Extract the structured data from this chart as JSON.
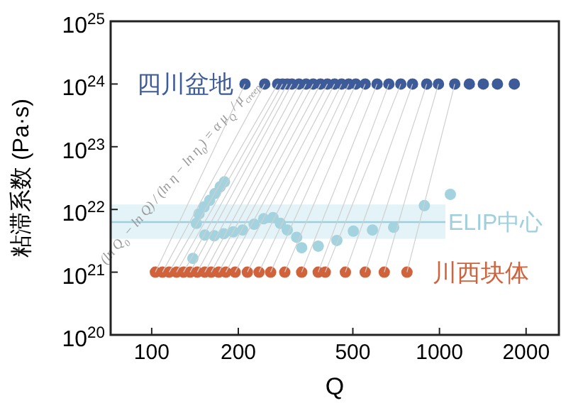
{
  "chart_data": {
    "type": "scatter",
    "xlabel": "Q",
    "ylabel": "粘滞系数 (Pa·s)",
    "log": "xy",
    "grid": false,
    "marker": "circle",
    "xlim": [
      72,
      2600
    ],
    "xticks": [
      100,
      200,
      500,
      1000,
      2000
    ],
    "ylim": [
      1e+20,
      1e+25
    ],
    "yticks": [
      {
        "value": 1e+20,
        "label": "10$^{20}$"
      },
      {
        "value": 1e+21,
        "label": "10$^{21}$"
      },
      {
        "value": 1e+22,
        "label": "10$^{22}$"
      },
      {
        "value": 1e+23,
        "label": "10$^{23}$"
      },
      {
        "value": 1e+24,
        "label": "10$^{24}$"
      },
      {
        "value": 1e+25,
        "label": "10$^{25}$"
      }
    ],
    "bands": [
      {
        "axis": "y",
        "from": 3.4e+21,
        "to": 1.2e+22,
        "color": "#dcf0f6"
      }
    ],
    "ref_lines": [
      {
        "axis": "y",
        "value": 6.3e+21,
        "label": "ELIP中心",
        "color": "#9fcfdc"
      }
    ],
    "annotations": [
      "(ln Q$_{0}$ − ln Q) / (ln η − ln η$_{0}$) = α μ$_{Q}$ / μ$_{creep}$"
    ],
    "series": [
      {
        "type": "line",
        "marker": "none",
        "color": "#cfcfcf",
        "x": [
          103,
          211,
          null,
          109,
          247,
          null,
          115,
          274,
          null,
          122,
          285,
          null,
          129,
          296,
          null,
          136,
          307,
          null,
          144,
          325,
          null,
          153,
          344,
          null,
          161,
          364,
          null,
          171,
          386,
          null,
          181,
          408,
          null,
          195,
          432,
          null,
          215,
          457,
          null,
          236,
          484,
          null,
          259,
          512,
          null,
          290,
          552,
          null,
          332,
          607,
          null,
          379,
          667,
          null,
          401,
          734,
          null,
          471,
          806,
          null,
          552,
          903,
          null,
          643,
          992,
          null,
          771,
          1130
        ],
        "values": [
          1e+21,
          1e+24,
          null,
          1e+21,
          1e+24,
          null,
          1e+21,
          1e+24,
          null,
          1e+21,
          1e+24,
          null,
          1e+21,
          1e+24,
          null,
          1e+21,
          1e+24,
          null,
          1e+21,
          1e+24,
          null,
          1e+21,
          1e+24,
          null,
          1e+21,
          1e+24,
          null,
          1e+21,
          1e+24,
          null,
          1e+21,
          1e+24,
          null,
          1e+21,
          1e+24,
          null,
          1e+21,
          1e+24,
          null,
          1e+21,
          1e+24,
          null,
          1e+21,
          1e+24,
          null,
          1e+21,
          1e+24,
          null,
          1e+21,
          1e+24,
          null,
          1e+21,
          1e+24,
          null,
          1e+21,
          1e+24,
          null,
          1e+21,
          1e+24,
          null,
          1e+21,
          1e+24,
          null,
          1e+21,
          1e+24,
          null,
          1e+21,
          1e+24
        ]
      },
      {
        "name": "四川盆地",
        "color": "#3d5b99",
        "x": [
          211,
          247,
          274,
          285,
          296,
          307,
          325,
          344,
          364,
          386,
          408,
          432,
          457,
          484,
          512,
          552,
          607,
          667,
          734,
          806,
          903,
          992,
          1130,
          1270,
          1420,
          1590,
          1820
        ],
        "values": [
          1e+24,
          1e+24,
          1e+24,
          1e+24,
          1e+24,
          1e+24,
          1e+24,
          1e+24,
          1e+24,
          1e+24,
          1e+24,
          1e+24,
          1e+24,
          1e+24,
          1e+24,
          1e+24,
          1e+24,
          1e+24,
          1e+24,
          1e+24,
          1e+24,
          1e+24,
          1e+24,
          1e+24,
          1e+24,
          1e+24,
          1e+24
        ]
      },
      {
        "name": "川西块体",
        "color": "#d0633c",
        "x": [
          103,
          109,
          115,
          122,
          129,
          136,
          144,
          153,
          161,
          171,
          181,
          195,
          215,
          236,
          259,
          290,
          332,
          379,
          401,
          471,
          552,
          643,
          771
        ],
        "values": [
          1e+21,
          1e+21,
          1e+21,
          1e+21,
          1e+21,
          1e+21,
          1e+21,
          1e+21,
          1e+21,
          1e+21,
          1e+21,
          1e+21,
          1e+21,
          1e+21,
          1e+21,
          1e+21,
          1e+21,
          1e+21,
          1e+21,
          1e+21,
          1e+21,
          1e+21,
          1e+21
        ]
      },
      {
        "color": "#a3d3de",
        "x": [
          139,
          143,
          146,
          152,
          159,
          166,
          173,
          179,
          153,
          165,
          178,
          192,
          207,
          227,
          245,
          264,
          280,
          296,
          319,
          332,
          379,
          440,
          502,
          585,
          693,
          886,
          1091
        ],
        "values": [
          1.66e+21,
          6e+21,
          8.5e+21,
          1.1e+22,
          1.4e+22,
          1.8e+22,
          2.3e+22,
          2.75e+22,
          3.9e+21,
          3.8e+21,
          4.1e+21,
          4.4e+21,
          4.7e+21,
          5.8e+21,
          7.1e+21,
          7.4e+21,
          6e+21,
          4.7e+21,
          3.6e+21,
          2.45e+21,
          2.6e+21,
          3.2e+21,
          4.5e+21,
          4.7e+21,
          5.2e+21,
          1.15e+22,
          1.74e+22
        ]
      }
    ]
  }
}
